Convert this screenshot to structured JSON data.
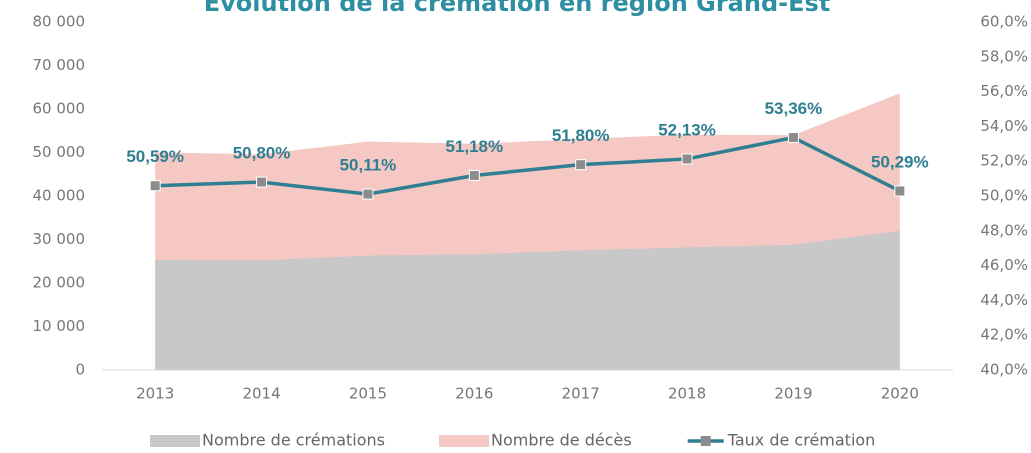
{
  "chart_data": {
    "type": "area-line",
    "title": "Évolution de la crémation en région Grand-Est",
    "categories": [
      "2013",
      "2014",
      "2015",
      "2016",
      "2017",
      "2018",
      "2019",
      "2020"
    ],
    "series": [
      {
        "name": "Nombre de crémations",
        "color": "#c8c8c8",
        "kind": "area",
        "values": [
          25300,
          25200,
          26300,
          26600,
          27500,
          28200,
          28800,
          32000
        ]
      },
      {
        "name": "Nombre de décès",
        "color": "#f6c8c3",
        "kind": "area",
        "values": [
          50000,
          49600,
          52500,
          52000,
          53100,
          54100,
          54000,
          63600
        ]
      },
      {
        "name": "Taux de crémation",
        "color": "#2e7f91",
        "kind": "line",
        "axis": "y2",
        "values": [
          50.59,
          50.8,
          50.11,
          51.18,
          51.8,
          52.13,
          53.36,
          50.29
        ],
        "value_labels": [
          "50,59%",
          "50,80%",
          "50,11%",
          "51,18%",
          "51,80%",
          "52,13%",
          "53,36%",
          "50,29%"
        ]
      }
    ],
    "ylim": [
      0,
      80000
    ],
    "yticks": [
      0,
      {
        "value": 10000,
        "label": "10 000"
      },
      {
        "value": 20000,
        "label": "20 000"
      },
      {
        "value": 30000,
        "label": "30 000"
      },
      {
        "value": 40000,
        "label": "40 000"
      },
      {
        "value": 50000,
        "label": "50 000"
      },
      {
        "value": 60000,
        "label": "60 000"
      },
      {
        "value": 70000,
        "label": "70 000"
      },
      {
        "value": 80000,
        "label": "80 000"
      }
    ],
    "y2lim": [
      40,
      60
    ],
    "y2ticks": [
      {
        "value": 40,
        "label": "40,0%"
      },
      {
        "value": 42,
        "label": "42,0%"
      },
      {
        "value": 44,
        "label": "44,0%"
      },
      {
        "value": 46,
        "label": "46,0%"
      },
      {
        "value": 48,
        "label": "48,0%"
      },
      {
        "value": 50,
        "label": "50,0%"
      },
      {
        "value": 52,
        "label": "52,0%"
      },
      {
        "value": 54,
        "label": "54,0%"
      },
      {
        "value": 56,
        "label": "56,0%"
      },
      {
        "value": 58,
        "label": "58,0%"
      },
      {
        "value": 60,
        "label": "60,0%"
      }
    ],
    "legend": "bottom"
  }
}
